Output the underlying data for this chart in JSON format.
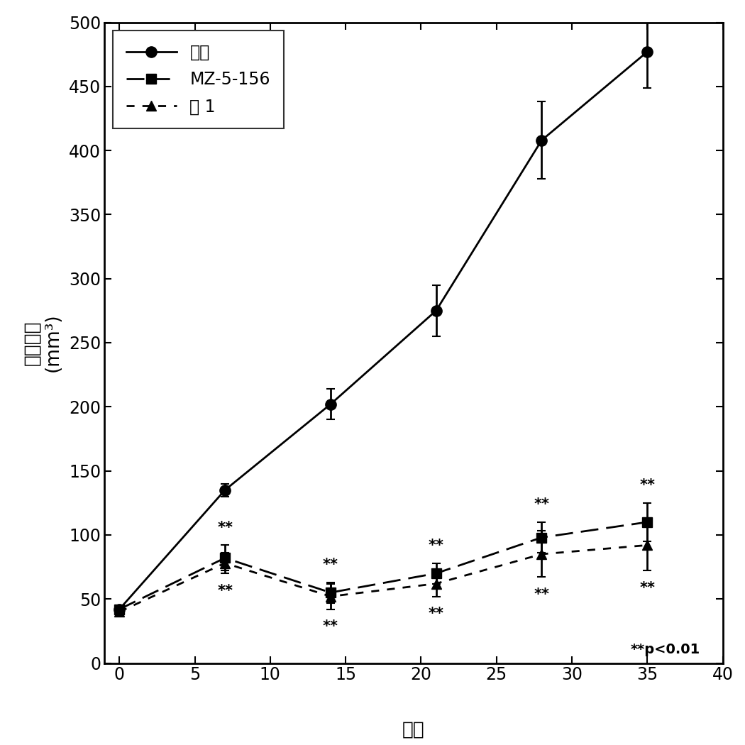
{
  "x": [
    0,
    7,
    14,
    21,
    28,
    35
  ],
  "control_y": [
    42,
    135,
    202,
    275,
    408,
    477
  ],
  "control_yerr": [
    0,
    5,
    12,
    20,
    30,
    28
  ],
  "mz_y": [
    42,
    82,
    55,
    70,
    98,
    110
  ],
  "mz_yerr": [
    3,
    10,
    8,
    8,
    12,
    15
  ],
  "peptide_y": [
    40,
    78,
    52,
    62,
    85,
    92
  ],
  "peptide_yerr": [
    3,
    8,
    10,
    10,
    18,
    20
  ],
  "ylabel_line1": "肿瘾体积",
  "ylabel_line2": "(mm³)",
  "xlabel": "天数",
  "ylim": [
    0,
    500
  ],
  "xlim": [
    -1,
    40
  ],
  "yticks": [
    0,
    50,
    100,
    150,
    200,
    250,
    300,
    350,
    400,
    450,
    500
  ],
  "xticks": [
    0,
    5,
    10,
    15,
    20,
    25,
    30,
    35,
    40
  ],
  "legend_label_control": "对照",
  "legend_label_mz": "MZ-5-156",
  "legend_label_pep": "肽 1",
  "star_annotation": "**p<0.01"
}
